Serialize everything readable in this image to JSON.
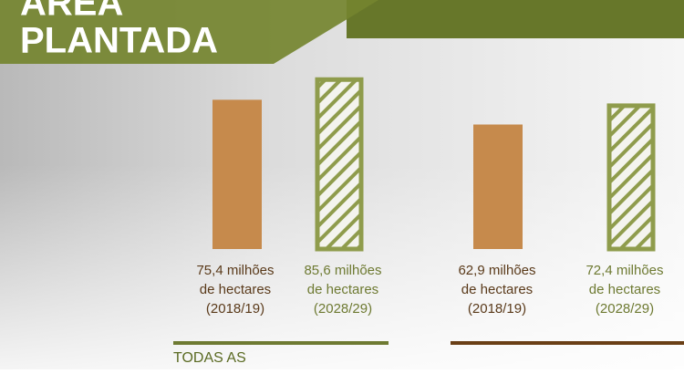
{
  "header": {
    "title_line1": "ÁREA",
    "title_line2": "PLANTADA"
  },
  "chart_data": [
    {
      "type": "bar",
      "categories": [
        "(2018/19)",
        "(2028/29)"
      ],
      "values": [
        75.4,
        85.6
      ],
      "value_labels": [
        "75,4 milhões",
        "85,6 milhões"
      ],
      "unit": "de hectares",
      "colors": [
        "#c68a4c",
        "#8f9c4c"
      ],
      "footer": "TODAS AS"
    },
    {
      "type": "bar",
      "categories": [
        "(2018/19)",
        "(2028/29)"
      ],
      "values": [
        62.9,
        72.4
      ],
      "value_labels": [
        "62,9 milhões",
        "72,4 milhões"
      ],
      "unit": "de hectares",
      "colors": [
        "#c68a4c",
        "#8f9c4c"
      ]
    }
  ]
}
